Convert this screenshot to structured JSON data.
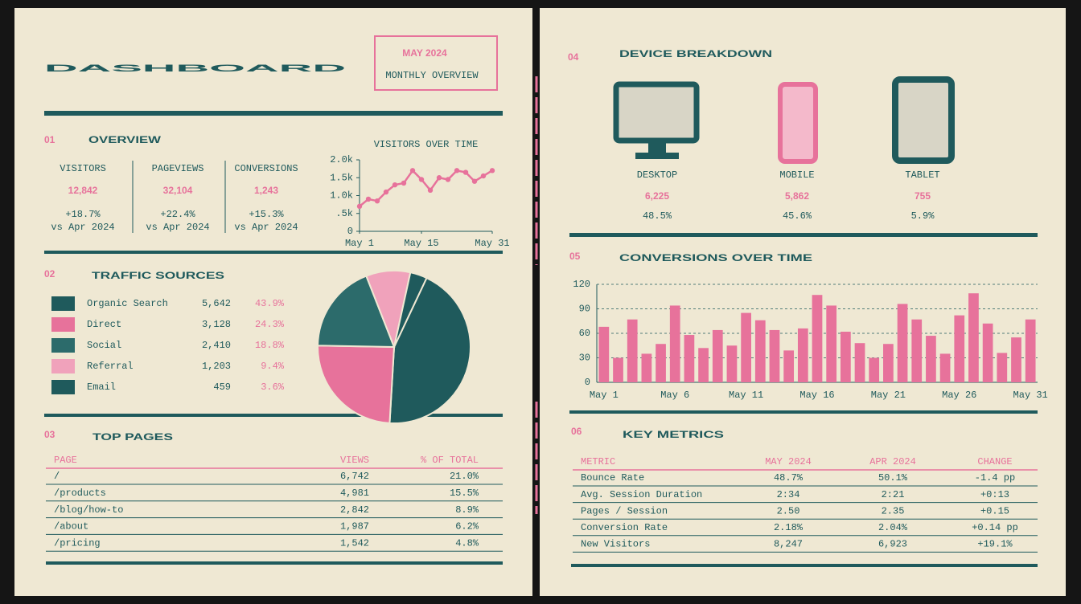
{
  "header": {
    "title": "DASHBOARD",
    "period": "MAY 2024",
    "subtitle": "MONTHLY OVERVIEW"
  },
  "sections": [
    {
      "number": "01",
      "title": "OVERVIEW"
    },
    {
      "number": "02",
      "title": "TRAFFIC SOURCES"
    },
    {
      "number": "03",
      "title": "TOP PAGES"
    },
    {
      "number": "04",
      "title": "DEVICE BREAKDOWN"
    },
    {
      "number": "05",
      "title": "CONVERSIONS OVER TIME"
    },
    {
      "number": "06",
      "title": "KEY METRICS"
    }
  ],
  "overview": [
    {
      "label": "VISITORS",
      "value": "12,842",
      "change": "+18.7%",
      "compare": "vs Apr 2024"
    },
    {
      "label": "PAGEVIEWS",
      "value": "32,104",
      "change": "+22.4%",
      "compare": "vs Apr 2024"
    },
    {
      "label": "CONVERSIONS",
      "value": "1,243",
      "change": "+15.3%",
      "compare": "vs Apr 2024"
    }
  ],
  "top_pages": {
    "columns": [
      "PAGE",
      "VIEWS",
      "% OF TOTAL"
    ],
    "rows": [
      [
        "/",
        "6,742",
        "21.0%"
      ],
      [
        "/products",
        "4,981",
        "15.5%"
      ],
      [
        "/blog/how-to",
        "2,842",
        "8.9%"
      ],
      [
        "/about",
        "1,987",
        "6.2%"
      ],
      [
        "/pricing",
        "1,542",
        "4.8%"
      ]
    ]
  },
  "devices": [
    {
      "label": "DESKTOP",
      "value": "6,225",
      "share": "48.5%"
    },
    {
      "label": "MOBILE",
      "value": "5,862",
      "share": "45.6%"
    },
    {
      "label": "TABLET",
      "value": "755",
      "share": "5.9%"
    }
  ],
  "key_metrics": {
    "columns": [
      "METRIC",
      "MAY 2024",
      "APR 2024",
      "CHANGE"
    ],
    "rows": [
      [
        "Bounce Rate",
        "48.7%",
        "50.1%",
        "-1.4 pp"
      ],
      [
        "Avg. Session Duration",
        "2:34",
        "2:21",
        "+0:13"
      ],
      [
        "Pages / Session",
        "2.50",
        "2.35",
        "+0.15"
      ],
      [
        "Conversion Rate",
        "2.18%",
        "2.04%",
        "+0.14 pp"
      ],
      [
        "New Visitors",
        "8,247",
        "6,923",
        "+19.1%"
      ]
    ]
  },
  "chart_data": [
    {
      "type": "line",
      "title": "VISITORS OVER TIME",
      "color": "#e7729b",
      "x": [
        1,
        3,
        5,
        7,
        9,
        11,
        13,
        15,
        17,
        19,
        21,
        23,
        25,
        27,
        29,
        31
      ],
      "values": [
        700,
        900,
        850,
        1100,
        1300,
        1350,
        1700,
        1450,
        1150,
        1500,
        1450,
        1700,
        1650,
        1400,
        1550,
        1700
      ],
      "xlim": [
        1,
        31
      ],
      "xticks": [
        {
          "value": 1,
          "label": "May 1"
        },
        {
          "value": 15,
          "label": "May 15"
        },
        {
          "value": 31,
          "label": "May 31"
        }
      ],
      "ylim": [
        0,
        2000
      ],
      "yticks": [
        0,
        {
          "value": 500,
          "label": ".5k"
        },
        {
          "value": 1000,
          "label": "1.0k"
        },
        {
          "value": 1500,
          "label": "1.5k"
        },
        {
          "value": 2000,
          "label": "2.0k"
        }
      ]
    },
    {
      "type": "pie",
      "categories": [
        "Organic Search",
        "Direct",
        "Social",
        "Referral",
        "Email"
      ],
      "values": [
        5642,
        3128,
        2410,
        1203,
        459
      ],
      "value_labels": [
        "5,642",
        "3,128",
        "2,410",
        "1,203",
        "459"
      ],
      "shares": [
        "43.9%",
        "24.3%",
        "18.8%",
        "9.4%",
        "3.6%"
      ],
      "colors": [
        "#1f5a5c",
        "#e7729b",
        "#2c6b6b",
        "#f0a2bb",
        "#1f5a5c"
      ]
    },
    {
      "type": "bar",
      "color": "#e7729b",
      "categories": [
        "May 1",
        null,
        null,
        null,
        null,
        "May 6",
        null,
        null,
        null,
        null,
        "May 11",
        null,
        null,
        null,
        null,
        "May 16",
        null,
        null,
        null,
        null,
        "May 21",
        null,
        null,
        null,
        null,
        "May 26",
        null,
        null,
        null,
        null,
        "May 31"
      ],
      "values": [
        68,
        30,
        77,
        35,
        47,
        94,
        58,
        42,
        64,
        45,
        85,
        76,
        64,
        39,
        66,
        107,
        94,
        62,
        48,
        30,
        47,
        96,
        77,
        57,
        35,
        82,
        109,
        72,
        36,
        55,
        77
      ],
      "ylim": [
        0,
        120
      ],
      "yticks": [
        0,
        30,
        60,
        90,
        120
      ],
      "grid": true
    }
  ]
}
